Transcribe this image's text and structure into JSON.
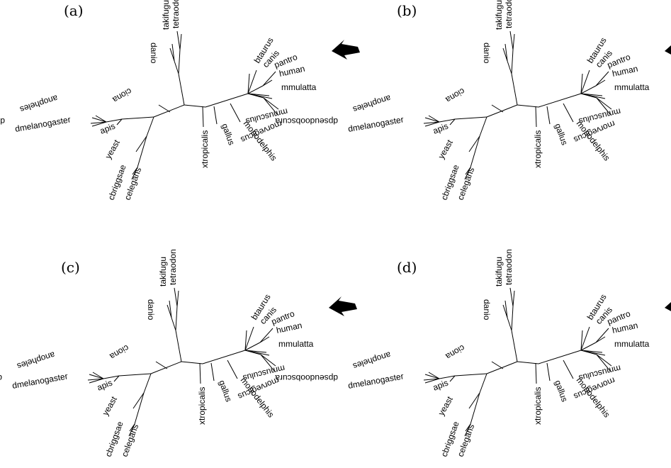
{
  "figure": {
    "panels": [
      {
        "label": "(a)",
        "arrow_target": "human"
      },
      {
        "label": "(b)",
        "arrow_target": "human"
      },
      {
        "label": "(c)",
        "arrow_target": "human"
      },
      {
        "label": "(d)",
        "arrow_target": "human"
      }
    ],
    "taxa": [
      "takifugu",
      "tetraodon",
      "danio",
      "ciona",
      "anopheles",
      "dpseudoobscura",
      "dmelanogaster",
      "apis",
      "yeast",
      "cbriggsae",
      "celegans",
      "xtropicalis",
      "gallus",
      "monodelphis",
      "btaurus",
      "canis",
      "pantro",
      "human",
      "mmulatta",
      "mmusculus",
      "rnorvegicus"
    ]
  }
}
